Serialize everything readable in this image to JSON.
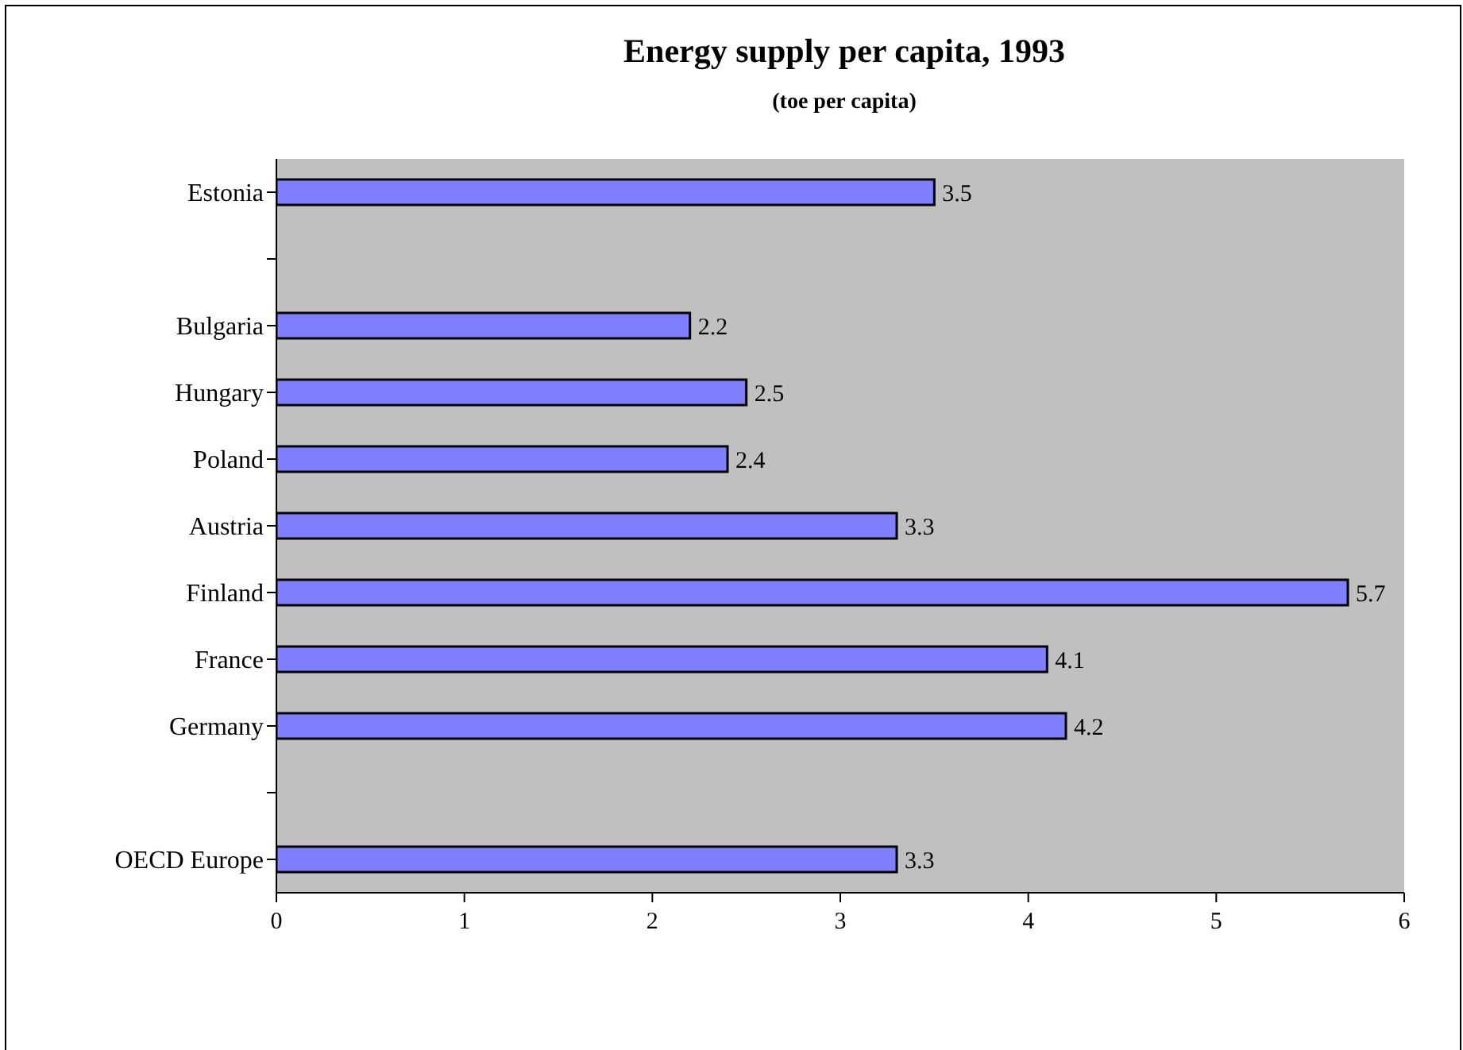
{
  "chart_data": {
    "type": "bar",
    "orientation": "horizontal",
    "title": "Energy supply per capita, 1993",
    "subtitle": "(toe per capita)",
    "categories": [
      "Estonia",
      null,
      "Bulgaria",
      "Hungary",
      "Poland",
      "Austria",
      "Finland",
      "France",
      "Germany",
      null,
      "OECD Europe"
    ],
    "values": [
      3.5,
      null,
      2.2,
      2.5,
      2.4,
      3.3,
      5.7,
      4.1,
      4.2,
      null,
      3.3
    ],
    "color": "#8080ff",
    "data_labels": true,
    "xlim": [
      0,
      6
    ],
    "xticks": [
      0,
      1,
      2,
      3,
      4,
      5,
      6
    ],
    "grid": false
  }
}
